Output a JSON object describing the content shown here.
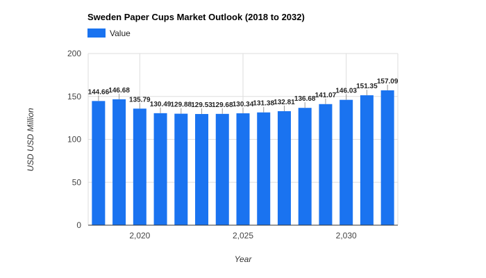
{
  "chart_data": {
    "type": "bar",
    "title": "Sweden Paper Cups Market Outlook (2018 to 2032)",
    "xlabel": "Year",
    "ylabel": "USD USD Million",
    "x": [
      2018,
      2019,
      2020,
      2021,
      2022,
      2023,
      2024,
      2025,
      2026,
      2027,
      2028,
      2029,
      2030,
      2031,
      2032
    ],
    "x_ticks": [
      2020,
      2025,
      2030
    ],
    "x_tick_labels": [
      "2,020",
      "2,025",
      "2,030"
    ],
    "y_ticks": [
      0,
      50,
      100,
      150,
      200
    ],
    "y_tick_labels": [
      "0",
      "50",
      "100",
      "150",
      "200"
    ],
    "ylim": [
      0,
      200
    ],
    "grid": true,
    "legend_position": "top-left",
    "series": [
      {
        "name": "Value",
        "color": "#1a73f0",
        "values": [
          144.66,
          146.68,
          135.79,
          130.49,
          129.88,
          129.53,
          129.68,
          130.34,
          131.38,
          132.81,
          136.68,
          141.07,
          146.03,
          151.35,
          157.09
        ],
        "value_labels": [
          "144.66",
          "146.68",
          "135.79",
          "130.49",
          "129.88",
          "129.53",
          "129.68",
          "130.34",
          "131.38",
          "132.81",
          "136.68",
          "141.07",
          "146.03",
          "151.35",
          "157.09"
        ]
      }
    ]
  }
}
